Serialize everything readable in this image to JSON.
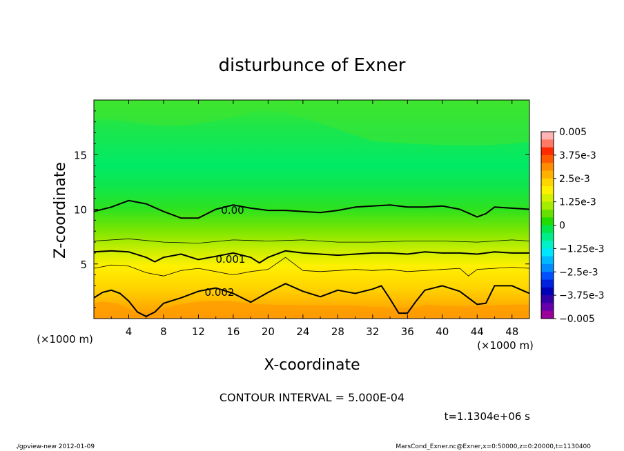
{
  "chart_data": {
    "type": "heatmap",
    "title": "disturbunce of Exner",
    "xlabel": "X-coordinate",
    "ylabel": "Z-coordinate",
    "x_unit": "(×1000 m)",
    "y_unit": "(×1000 m)",
    "xlim": [
      0,
      50
    ],
    "ylim": [
      0,
      20
    ],
    "x_ticks": [
      "4",
      "8",
      "12",
      "16",
      "20",
      "24",
      "28",
      "32",
      "36",
      "40",
      "44",
      "48"
    ],
    "y_ticks": [
      "5",
      "10",
      "15"
    ],
    "contour_interval_text": "CONTOUR INTERVAL = 5.000E-04",
    "time_text": "t=1.1304e+06 s",
    "contour_labels": [
      "0.00",
      "0.001",
      "0.002"
    ],
    "colorbar": {
      "labels": [
        "0.005",
        "3.75e-3",
        "2.5e-3",
        "1.25e-3",
        "0",
        "−1.25e-3",
        "−2.5e-3",
        "−3.75e-3",
        "−0.005"
      ],
      "colors": [
        "#ffb3b3",
        "#ff7a66",
        "#ff2a00",
        "#ff5a00",
        "#ff8c00",
        "#ffb000",
        "#ffd400",
        "#fff000",
        "#d2f000",
        "#a6ec00",
        "#66e000",
        "#22dc00",
        "#00e64b",
        "#00ee8a",
        "#00f2c6",
        "#00e6ff",
        "#00b8ff",
        "#008cff",
        "#0050ff",
        "#0020e0",
        "#0000b8",
        "#3300a8",
        "#6600aa",
        "#990099"
      ],
      "min": -0.005,
      "max": 0.005
    },
    "contours": [
      {
        "level": 0.0,
        "x": [
          0,
          2,
          4,
          6,
          8,
          10,
          12,
          14,
          16,
          18,
          20,
          22,
          24,
          26,
          28,
          30,
          32,
          34,
          36,
          38,
          40,
          42,
          44,
          45,
          46,
          48,
          50
        ],
        "y": [
          9.8,
          10.2,
          10.8,
          10.5,
          9.8,
          9.2,
          9.2,
          10.0,
          10.4,
          10.1,
          9.9,
          9.9,
          9.8,
          9.7,
          9.9,
          10.2,
          10.3,
          10.4,
          10.2,
          10.2,
          10.3,
          10.0,
          9.3,
          9.6,
          10.2,
          10.1,
          10.0
        ]
      },
      {
        "level": 0.0005,
        "x": [
          0,
          4,
          8,
          12,
          16,
          20,
          24,
          28,
          32,
          36,
          40,
          44,
          48,
          50
        ],
        "y": [
          7.1,
          7.3,
          7.0,
          6.9,
          7.2,
          7.1,
          7.2,
          7.0,
          7.0,
          7.1,
          7.1,
          7.0,
          7.2,
          7.1
        ]
      },
      {
        "level": 0.001,
        "x": [
          0,
          2,
          4,
          6,
          7,
          8,
          10,
          12,
          14,
          16,
          18,
          19,
          20,
          22,
          24,
          26,
          28,
          30,
          32,
          34,
          36,
          38,
          40,
          42,
          44,
          46,
          48,
          50
        ],
        "y": [
          6.1,
          6.2,
          6.1,
          5.6,
          5.2,
          5.6,
          5.9,
          5.4,
          5.7,
          6.0,
          5.6,
          5.1,
          5.6,
          6.2,
          6.0,
          5.9,
          5.8,
          5.9,
          6.0,
          6.0,
          5.9,
          6.1,
          6.0,
          6.0,
          5.9,
          6.1,
          6.0,
          6.0
        ]
      },
      {
        "level": 0.0015,
        "x": [
          0,
          2,
          4,
          6,
          8,
          10,
          12,
          14,
          16,
          18,
          20,
          22,
          23,
          24,
          26,
          28,
          30,
          32,
          34,
          36,
          38,
          40,
          42,
          43,
          44,
          46,
          48,
          50
        ],
        "y": [
          4.6,
          4.9,
          4.8,
          4.2,
          3.9,
          4.4,
          4.6,
          4.3,
          4.0,
          4.3,
          4.5,
          5.6,
          5.0,
          4.4,
          4.3,
          4.4,
          4.5,
          4.4,
          4.5,
          4.3,
          4.4,
          4.5,
          4.6,
          3.9,
          4.5,
          4.6,
          4.7,
          4.6
        ]
      },
      {
        "level": 0.002,
        "x": [
          0,
          1,
          2,
          3,
          4,
          5,
          6,
          7,
          8,
          10,
          12,
          14,
          16,
          18,
          20,
          22,
          24,
          26,
          28,
          30,
          32,
          33,
          34,
          35,
          36,
          37,
          38,
          40,
          42,
          44,
          45,
          46,
          48,
          50
        ],
        "y": [
          1.9,
          2.4,
          2.6,
          2.3,
          1.6,
          0.6,
          0.2,
          0.6,
          1.4,
          1.9,
          2.5,
          2.8,
          2.3,
          1.5,
          2.4,
          3.2,
          2.5,
          2.0,
          2.6,
          2.3,
          2.7,
          3.0,
          1.8,
          0.5,
          0.5,
          1.6,
          2.6,
          3.0,
          2.5,
          1.3,
          1.4,
          3.0,
          3.0,
          2.3
        ]
      }
    ]
  },
  "footer": {
    "left": "./gpview-new  2012-01-09",
    "right": "MarsCond_Exner.nc@Exner,x=0:50000,z=0:20000,t=1130400"
  }
}
